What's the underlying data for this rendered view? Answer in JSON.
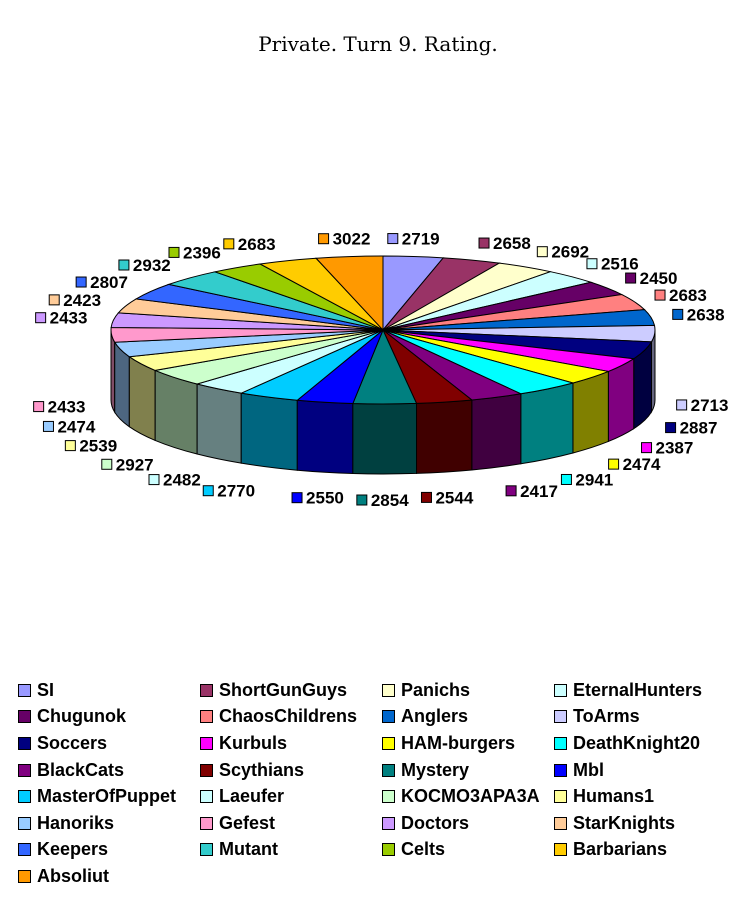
{
  "chart_data": {
    "type": "pie",
    "title": "Private. Turn 9. Rating.",
    "legend_position": "bottom",
    "slices": [
      {
        "name": "SI",
        "value": 2719,
        "color": "#9999ff"
      },
      {
        "name": "ShortGunGuys",
        "value": 2658,
        "color": "#993366"
      },
      {
        "name": "Panichs",
        "value": 2692,
        "color": "#ffffcc"
      },
      {
        "name": "EternalHunters",
        "value": 2516,
        "color": "#ccffff"
      },
      {
        "name": "Chugunok",
        "value": 2450,
        "color": "#660066"
      },
      {
        "name": "ChaosChildrens",
        "value": 2683,
        "color": "#ff8080"
      },
      {
        "name": "Anglers",
        "value": 2638,
        "color": "#0066cc"
      },
      {
        "name": "ToArms",
        "value": 2713,
        "color": "#ccccff"
      },
      {
        "name": "Soccers",
        "value": 2887,
        "color": "#000080"
      },
      {
        "name": "Kurbuls",
        "value": 2387,
        "color": "#ff00ff"
      },
      {
        "name": "HAM-burgers",
        "value": 2474,
        "color": "#ffff00"
      },
      {
        "name": "DeathKnight20",
        "value": 2941,
        "color": "#00ffff"
      },
      {
        "name": "BlackCats",
        "value": 2417,
        "color": "#800080"
      },
      {
        "name": "Scythians",
        "value": 2544,
        "color": "#800000"
      },
      {
        "name": "Mystery",
        "value": 2854,
        "color": "#008080"
      },
      {
        "name": "Mbl",
        "value": 2550,
        "color": "#0000ff"
      },
      {
        "name": "MasterOfPuppet",
        "value": 2770,
        "color": "#00ccff"
      },
      {
        "name": "Laeufer",
        "value": 2482,
        "color": "#ccffff"
      },
      {
        "name": "KOCMO3APA3A",
        "value": 2927,
        "color": "#ccffcc"
      },
      {
        "name": "Humans1",
        "value": 2539,
        "color": "#ffff99"
      },
      {
        "name": "Hanoriks",
        "value": 2474,
        "color": "#99ccff"
      },
      {
        "name": "Gefest",
        "value": 2433,
        "color": "#ff99cc"
      },
      {
        "name": "Doctors",
        "value": 2433,
        "color": "#cc99ff"
      },
      {
        "name": "StarKnights",
        "value": 2423,
        "color": "#ffcc99"
      },
      {
        "name": "Keepers",
        "value": 2807,
        "color": "#3366ff"
      },
      {
        "name": "Mutant",
        "value": 2932,
        "color": "#33cccc"
      },
      {
        "name": "Celts",
        "value": 2396,
        "color": "#99cc00"
      },
      {
        "name": "Barbarians",
        "value": 2683,
        "color": "#ffcc00"
      },
      {
        "name": "Absoliut",
        "value": 3022,
        "color": "#ff9900"
      }
    ]
  }
}
